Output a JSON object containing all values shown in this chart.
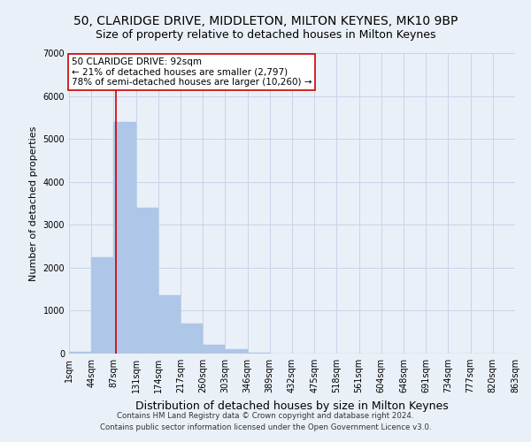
{
  "title": "50, CLARIDGE DRIVE, MIDDLETON, MILTON KEYNES, MK10 9BP",
  "subtitle": "Size of property relative to detached houses in Milton Keynes",
  "xlabel": "Distribution of detached houses by size in Milton Keynes",
  "ylabel": "Number of detached properties",
  "footer_line1": "Contains HM Land Registry data © Crown copyright and database right 2024.",
  "footer_line2": "Contains public sector information licensed under the Open Government Licence v3.0.",
  "bar_values": [
    50,
    2250,
    5400,
    3400,
    1350,
    700,
    200,
    100,
    30,
    10,
    5,
    2,
    1,
    0,
    0,
    0,
    0,
    0,
    0,
    0
  ],
  "all_xtick_labels": [
    "1sqm",
    "44sqm",
    "87sqm",
    "131sqm",
    "174sqm",
    "217sqm",
    "260sqm",
    "303sqm",
    "346sqm",
    "389sqm",
    "432sqm",
    "475sqm",
    "518sqm",
    "561sqm",
    "604sqm",
    "648sqm",
    "691sqm",
    "734sqm",
    "777sqm",
    "820sqm",
    "863sqm"
  ],
  "bar_color": "#aec6e8",
  "bar_edge_color": "#aec6e8",
  "grid_color": "#c8d4e8",
  "background_color": "#eaf0f8",
  "vline_color": "#cc0000",
  "annotation_line1": "50 CLARIDGE DRIVE: 92sqm",
  "annotation_line2": "← 21% of detached houses are smaller (2,797)",
  "annotation_line3": "78% of semi-detached houses are larger (10,260) →",
  "annotation_box_color": "#ffffff",
  "annotation_box_edge": "#cc0000",
  "ylim": [
    0,
    7000
  ],
  "yticks": [
    0,
    1000,
    2000,
    3000,
    4000,
    5000,
    6000,
    7000
  ],
  "title_fontsize": 10,
  "subtitle_fontsize": 9,
  "tick_fontsize": 7,
  "ylabel_fontsize": 8,
  "xlabel_fontsize": 9,
  "annotation_fontsize": 7.5,
  "footer_fontsize": 6.2
}
